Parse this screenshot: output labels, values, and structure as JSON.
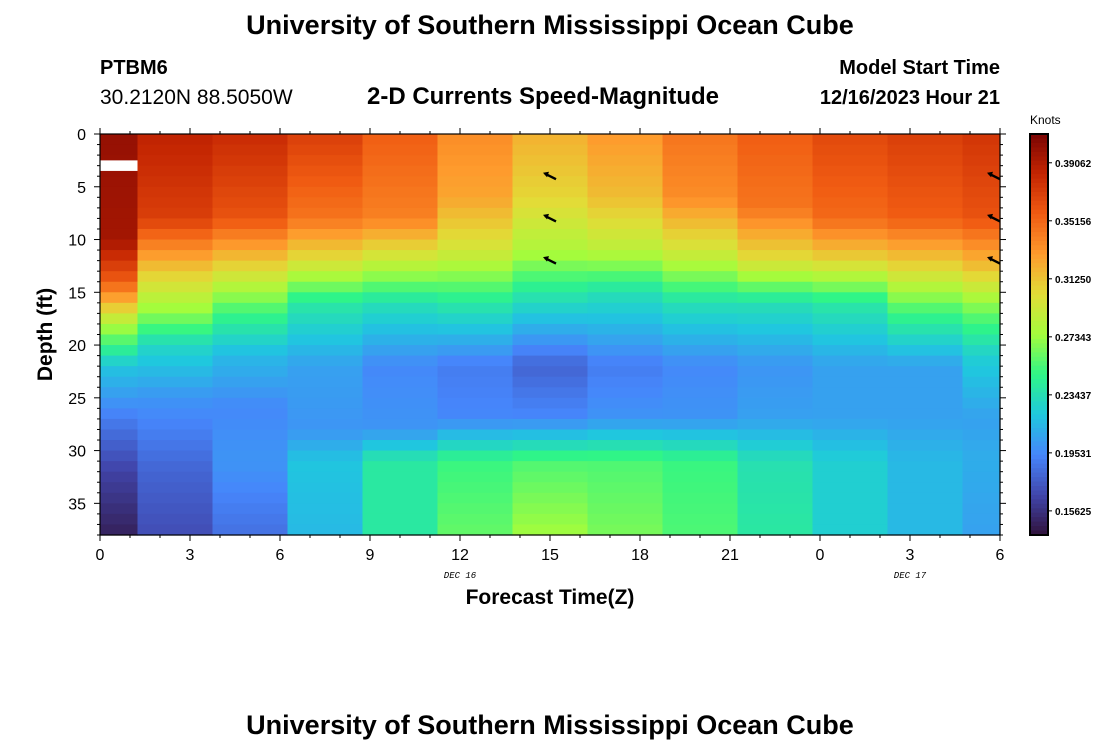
{
  "header": {
    "main_title": "University of Southern Mississippi Ocean Cube",
    "station_id": "PTBM6",
    "station_coords": "30.2120N  88.5050W",
    "plot_title": "2-D Currents Speed-Magnitude",
    "model_start_label": "Model Start Time",
    "model_start_value": "12/16/2023 Hour 21",
    "footer_title": "University of Southern Mississippi Ocean Cube"
  },
  "chart_data": {
    "type": "heatmap",
    "title": "2-D Currents Speed-Magnitude",
    "xlabel": "Forecast Time(Z)",
    "ylabel": "Depth (ft)",
    "x_tick_labels": [
      "0",
      "3",
      "6",
      "9",
      "12",
      "15",
      "18",
      "21",
      "0",
      "3",
      "6"
    ],
    "x_tick_hours": [
      0,
      3,
      6,
      9,
      12,
      15,
      18,
      21,
      24,
      27,
      30
    ],
    "xlim": [
      0,
      30
    ],
    "y_ticks": [
      0,
      5,
      10,
      15,
      20,
      25,
      30,
      35
    ],
    "ylim": [
      0,
      38
    ],
    "date_labels": [
      {
        "text": "DEC 16",
        "hour": 12
      },
      {
        "text": "DEC 17",
        "hour": 27
      }
    ],
    "column_hours": [
      0.6,
      2.5,
      5.0,
      7.5,
      10.0,
      12.5,
      15.0,
      17.5,
      20.0,
      22.5,
      25.0,
      27.5,
      29.4
    ],
    "column_edges": [
      0,
      1.25,
      3.75,
      6.25,
      8.75,
      11.25,
      13.75,
      16.25,
      18.75,
      21.25,
      23.75,
      26.25,
      28.75,
      30
    ],
    "depth_rows": 38,
    "column_profiles": [
      [
        [
          0,
          0.4
        ],
        [
          10,
          0.395
        ],
        [
          14,
          0.355
        ],
        [
          18,
          0.28
        ],
        [
          22,
          0.22
        ],
        [
          27,
          0.19
        ],
        [
          32,
          0.165
        ],
        [
          38,
          0.148
        ]
      ],
      [
        [
          0,
          0.385
        ],
        [
          8,
          0.37
        ],
        [
          13,
          0.31
        ],
        [
          17,
          0.27
        ],
        [
          20,
          0.23
        ],
        [
          25,
          0.2
        ],
        [
          32,
          0.18
        ],
        [
          38,
          0.17
        ]
      ],
      [
        [
          0,
          0.38
        ],
        [
          8,
          0.36
        ],
        [
          13,
          0.3
        ],
        [
          17,
          0.25
        ],
        [
          21,
          0.215
        ],
        [
          26,
          0.195
        ],
        [
          31,
          0.2
        ],
        [
          38,
          0.185
        ]
      ],
      [
        [
          0,
          0.37
        ],
        [
          8,
          0.345
        ],
        [
          12,
          0.3
        ],
        [
          16,
          0.24
        ],
        [
          22,
          0.205
        ],
        [
          28,
          0.2
        ],
        [
          31,
          0.22
        ],
        [
          38,
          0.215
        ]
      ],
      [
        [
          0,
          0.355
        ],
        [
          8,
          0.34
        ],
        [
          12,
          0.29
        ],
        [
          16,
          0.235
        ],
        [
          22,
          0.195
        ],
        [
          28,
          0.2
        ],
        [
          31,
          0.24
        ],
        [
          38,
          0.24
        ]
      ],
      [
        [
          0,
          0.335
        ],
        [
          6,
          0.325
        ],
        [
          11,
          0.295
        ],
        [
          16,
          0.24
        ],
        [
          22,
          0.19
        ],
        [
          27,
          0.195
        ],
        [
          31,
          0.25
        ],
        [
          38,
          0.26
        ]
      ],
      [
        [
          0,
          0.32
        ],
        [
          6,
          0.305
        ],
        [
          11,
          0.28
        ],
        [
          15,
          0.24
        ],
        [
          22,
          0.18
        ],
        [
          27,
          0.195
        ],
        [
          31,
          0.255
        ],
        [
          38,
          0.275
        ]
      ],
      [
        [
          0,
          0.33
        ],
        [
          6,
          0.315
        ],
        [
          11,
          0.285
        ],
        [
          15,
          0.235
        ],
        [
          22,
          0.19
        ],
        [
          27,
          0.2
        ],
        [
          31,
          0.255
        ],
        [
          38,
          0.265
        ]
      ],
      [
        [
          0,
          0.345
        ],
        [
          6,
          0.335
        ],
        [
          11,
          0.295
        ],
        [
          16,
          0.235
        ],
        [
          22,
          0.195
        ],
        [
          27,
          0.2
        ],
        [
          31,
          0.25
        ],
        [
          38,
          0.255
        ]
      ],
      [
        [
          0,
          0.355
        ],
        [
          7,
          0.345
        ],
        [
          12,
          0.3
        ],
        [
          16,
          0.235
        ],
        [
          22,
          0.2
        ],
        [
          27,
          0.205
        ],
        [
          31,
          0.235
        ],
        [
          38,
          0.24
        ]
      ],
      [
        [
          0,
          0.365
        ],
        [
          8,
          0.35
        ],
        [
          12,
          0.305
        ],
        [
          16,
          0.24
        ],
        [
          22,
          0.205
        ],
        [
          27,
          0.205
        ],
        [
          31,
          0.225
        ],
        [
          38,
          0.225
        ]
      ],
      [
        [
          0,
          0.37
        ],
        [
          8,
          0.355
        ],
        [
          13,
          0.3
        ],
        [
          17,
          0.25
        ],
        [
          22,
          0.205
        ],
        [
          27,
          0.205
        ],
        [
          31,
          0.215
        ],
        [
          38,
          0.215
        ]
      ],
      [
        [
          0,
          0.375
        ],
        [
          8,
          0.36
        ],
        [
          13,
          0.31
        ],
        [
          17,
          0.26
        ],
        [
          21,
          0.225
        ],
        [
          27,
          0.205
        ],
        [
          31,
          0.21
        ],
        [
          38,
          0.205
        ]
      ]
    ],
    "colorbar": {
      "units": "Knots",
      "min": 0.14,
      "max": 0.41,
      "ticks": [
        0.39062,
        0.35156,
        0.3125,
        0.27343,
        0.23437,
        0.19531,
        0.15625
      ],
      "tick_labels": [
        "0.39062",
        "0.35156",
        "0.31250",
        "0.27343",
        "0.23437",
        "0.19531",
        "0.15625"
      ]
    },
    "direction_arrows": [
      {
        "hour": 15,
        "depth": 4
      },
      {
        "hour": 15,
        "depth": 8
      },
      {
        "hour": 15,
        "depth": 12
      },
      {
        "hour": 30,
        "depth": 4
      },
      {
        "hour": 30,
        "depth": 8
      },
      {
        "hour": 30,
        "depth": 12
      }
    ],
    "colors": {
      "scale": [
        "#30123b",
        "#4146ac",
        "#4686fb",
        "#1fc8de",
        "#2ff587",
        "#a4fc3c",
        "#e1dd37",
        "#fe9b2d",
        "#f05b12",
        "#c42502",
        "#7a0403"
      ]
    }
  }
}
